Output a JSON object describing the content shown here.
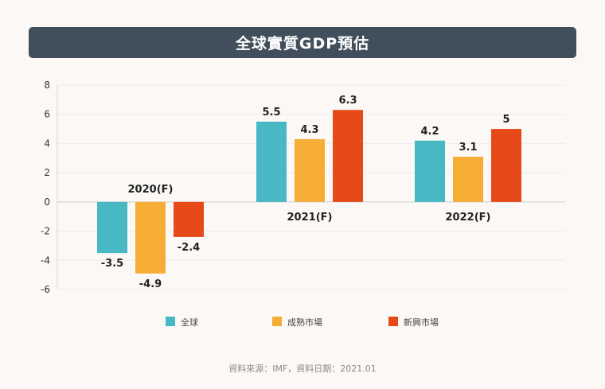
{
  "title": "全球實質GDP預估",
  "source": "資料來源：IMF，資料日期：2021.01",
  "chart_data": {
    "type": "bar",
    "categories": [
      "2020(F)",
      "2021(F)",
      "2022(F)"
    ],
    "series": [
      {
        "name": "全球",
        "values": [
          -3.5,
          5.5,
          4.2
        ],
        "color": "#47b8c4"
      },
      {
        "name": "成熟市場",
        "values": [
          -4.9,
          4.3,
          3.1
        ],
        "color": "#f5ad36"
      },
      {
        "name": "新興市場",
        "values": [
          -2.4,
          6.3,
          5
        ],
        "color": "#e84919"
      }
    ],
    "value_labels": [
      [
        "-3.5",
        "5.5",
        "4.2"
      ],
      [
        "-4.9",
        "4.3",
        "3.1"
      ],
      [
        "-2.4",
        "6.3",
        "5"
      ]
    ],
    "ylim": [
      -6,
      8
    ],
    "yticks": [
      "-6",
      "-4",
      "-2",
      "0",
      "2",
      "4",
      "6",
      "8"
    ],
    "grid": true,
    "legend_position": "bottom"
  }
}
